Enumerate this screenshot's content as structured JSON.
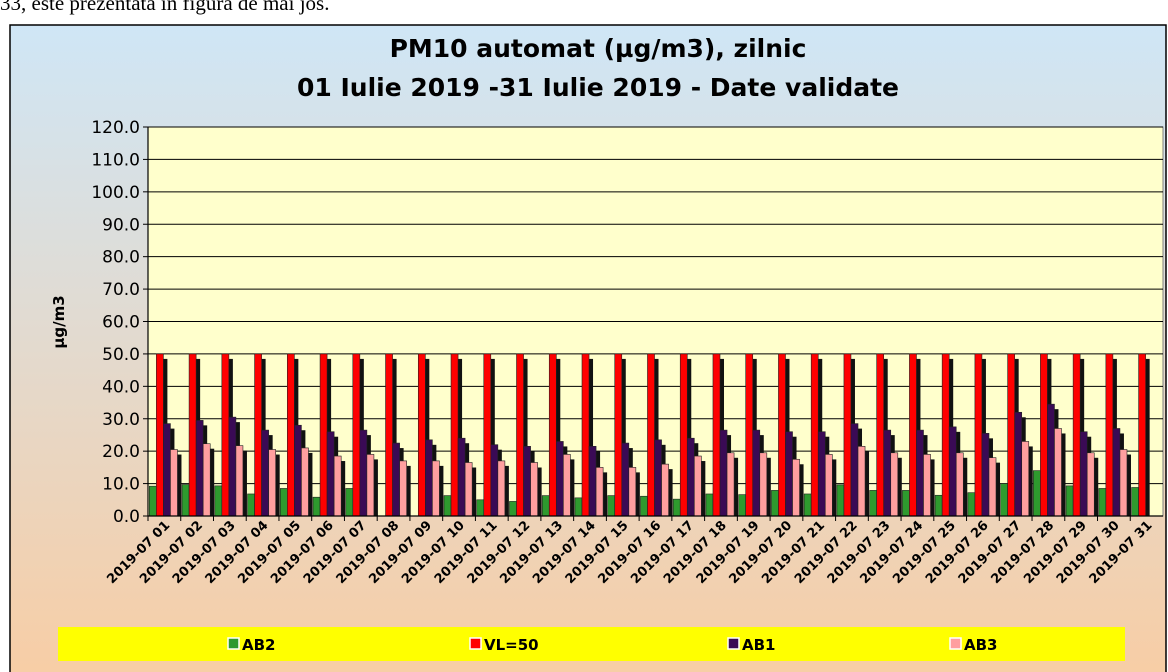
{
  "document_text": "33, este prezentată în figura de mai jos.",
  "chart_data": {
    "type": "bar",
    "title": "PM10 automat (µg/m3), zilnic",
    "subtitle": "01 Iulie 2019 -31 Iulie 2019 - Date validate",
    "y_label": "µg/m3",
    "categories": [
      "2019-07 01",
      "2019-07 02",
      "2019-07 03",
      "2019-07 04",
      "2019-07 05",
      "2019-07 06",
      "2019-07 07",
      "2019-07 08",
      "2019-07 09",
      "2019-07 10",
      "2019-07 11",
      "2019-07 12",
      "2019-07 13",
      "2019-07 14",
      "2019-07 15",
      "2019-07 16",
      "2019-07 17",
      "2019-07 18",
      "2019-07 19",
      "2019-07 20",
      "2019-07 21",
      "2019-07 22",
      "2019-07 23",
      "2019-07 24",
      "2019-07 25",
      "2019-07 26",
      "2019-07 27",
      "2019-07 28",
      "2019-07 29",
      "2019-07 30",
      "2019-07 31"
    ],
    "series": [
      {
        "name": "AB2",
        "color": "#2e9a2e",
        "values": [
          9.2,
          9.7,
          9.3,
          6.8,
          8.5,
          5.8,
          8.5,
          null,
          null,
          6.3,
          5.0,
          4.5,
          6.3,
          5.6,
          6.3,
          6.1,
          5.2,
          6.8,
          6.6,
          7.9,
          6.8,
          9.6,
          7.9,
          7.9,
          6.4,
          7.2,
          10.0,
          14.0,
          9.3,
          8.5,
          8.8
        ]
      },
      {
        "name": "VL=50",
        "color": "#ff0000",
        "values": [
          50,
          50,
          50,
          50,
          50,
          50,
          50,
          50,
          50,
          50,
          50,
          50,
          50,
          50,
          50,
          50,
          50,
          50,
          50,
          50,
          50,
          50,
          50,
          50,
          50,
          50,
          50,
          50,
          50,
          50,
          50
        ]
      },
      {
        "name": "AB1",
        "color": "#3a0a55",
        "values": [
          28.5,
          29.5,
          30.5,
          26.5,
          28.0,
          26.0,
          26.5,
          22.5,
          23.5,
          24.0,
          22.0,
          21.5,
          23.0,
          21.5,
          22.5,
          23.5,
          24.0,
          26.5,
          26.5,
          26.0,
          26.0,
          28.5,
          26.5,
          26.5,
          27.5,
          25.5,
          32.0,
          34.5,
          26.0,
          27.0,
          null
        ]
      },
      {
        "name": "AB3",
        "color": "#ff9f9f",
        "values": [
          20.5,
          22.3,
          21.7,
          20.5,
          21.0,
          18.5,
          19.0,
          17.0,
          17.0,
          16.5,
          17.0,
          16.5,
          19.0,
          15.0,
          15.0,
          16.0,
          18.5,
          19.5,
          19.5,
          17.5,
          19.0,
          21.5,
          19.5,
          19.0,
          19.5,
          18.0,
          23.0,
          27.0,
          19.5,
          20.5,
          null
        ]
      }
    ],
    "ylim": [
      0,
      120
    ],
    "yticks": [
      {
        "value": 0,
        "label": "0.0"
      },
      {
        "value": 10,
        "label": "10.0"
      },
      {
        "value": 20,
        "label": "20.0"
      },
      {
        "value": 30,
        "label": "30.0"
      },
      {
        "value": 40,
        "label": "40.0"
      },
      {
        "value": 50,
        "label": "50.0"
      },
      {
        "value": 60,
        "label": "60.0"
      },
      {
        "value": 70,
        "label": "70.0"
      },
      {
        "value": 80,
        "label": "80.0"
      },
      {
        "value": 90,
        "label": "90.0"
      },
      {
        "value": 100,
        "label": "100.0"
      },
      {
        "value": 110,
        "label": "110.0"
      },
      {
        "value": 120,
        "label": "120.0"
      }
    ],
    "grid": true,
    "legend": "bottom"
  }
}
